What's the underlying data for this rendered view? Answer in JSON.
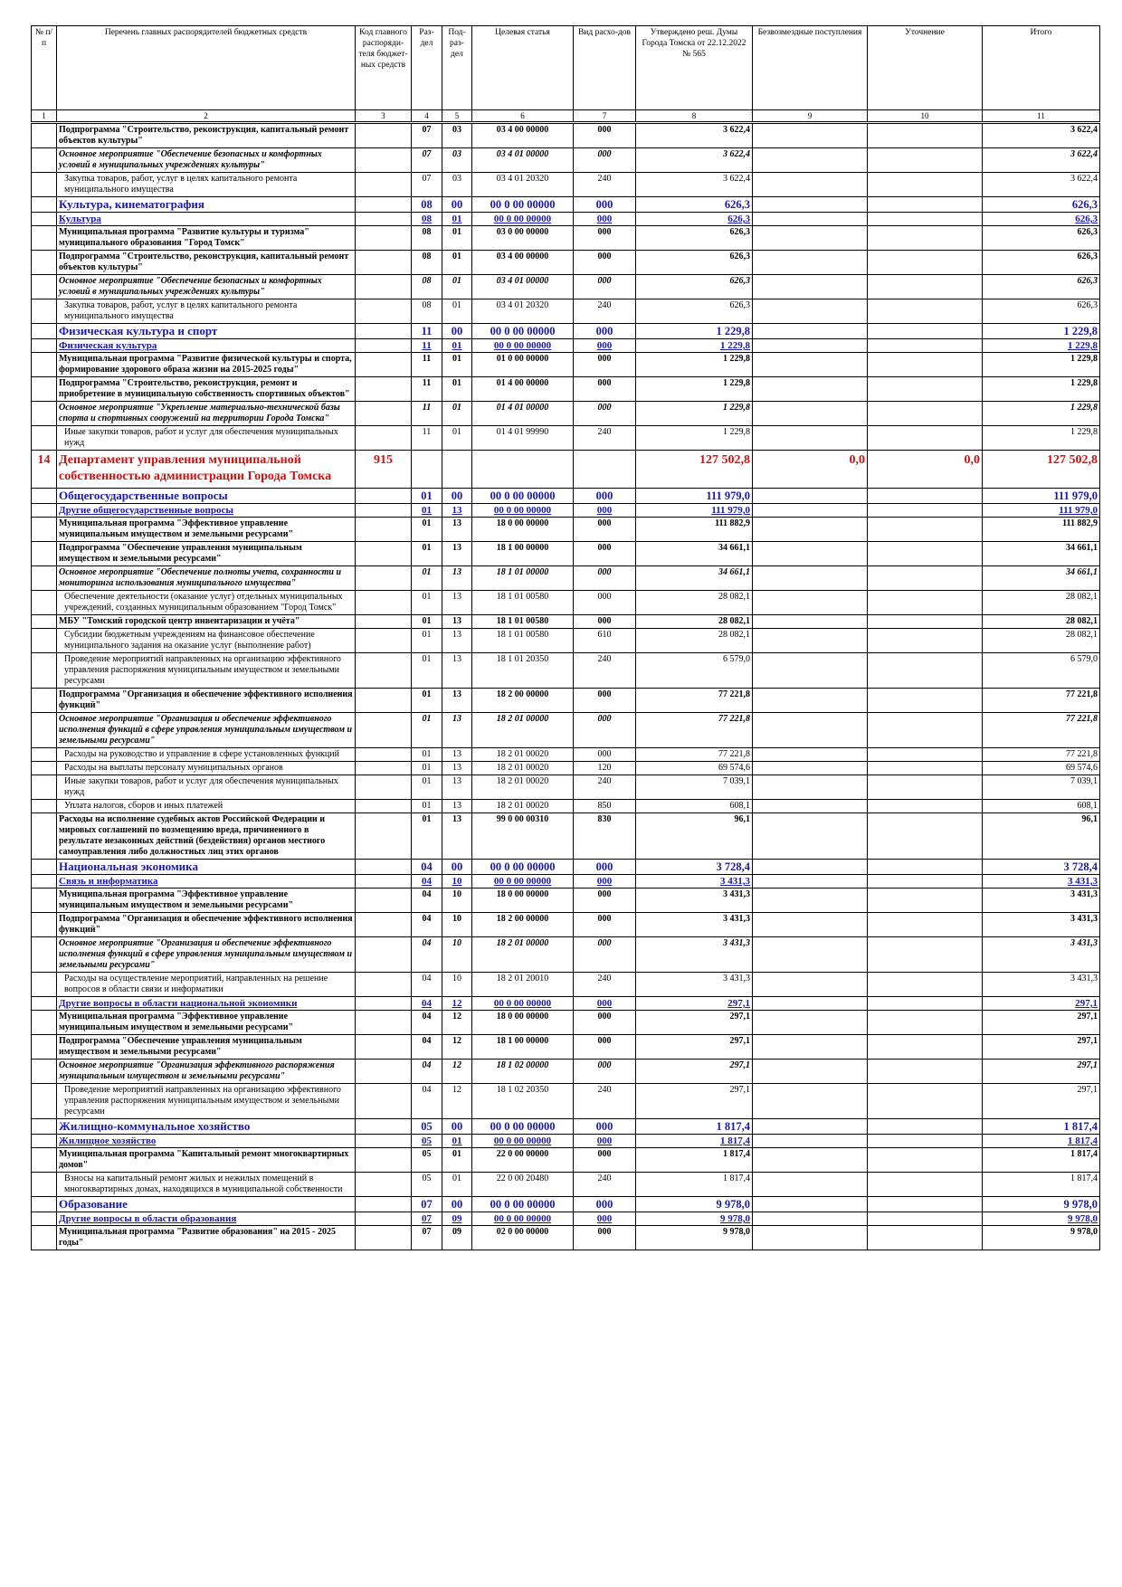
{
  "table": {
    "headers": [
      "№ п/п",
      "Перечень главных распорядителей бюджетных средств",
      "Код главного распоряди-теля бюджет-ных средств",
      "Раз-дел",
      "Под-раз-дел",
      "Целевая статья",
      "Вид расхо-дов",
      "Утверждено реш. Думы Города Томска от 22.12.2022 № 565",
      "Безвозмездные поступления",
      "Уточнение",
      "Итого"
    ],
    "column_numbers": [
      "1",
      "2",
      "3",
      "4",
      "5",
      "6",
      "7",
      "8",
      "9",
      "10",
      "11"
    ],
    "rows": [
      {
        "style": "bold",
        "cells": [
          null,
          "Подпрограмма \"Строительство, реконструкция, капитальный ремонт объектов культуры\"",
          null,
          "07",
          "03",
          "03 4 00 00000",
          "000",
          "3 622,4",
          null,
          null,
          "3 622,4"
        ]
      },
      {
        "style": "italic",
        "cells": [
          null,
          "Основное мероприятие \"Обеспечение безопасных и комфортных условий в муниципальных учреждениях культуры\"",
          null,
          "07",
          "03",
          "03 4 01 00000",
          "000",
          "3 622,4",
          null,
          null,
          "3 622,4"
        ]
      },
      {
        "style": "normal",
        "cells": [
          null,
          "Закупка товаров, работ, услуг в целях капитального ремонта муниципального имущества",
          null,
          "07",
          "03",
          "03 4 01 20320",
          "240",
          "3 622,4",
          null,
          null,
          "3 622,4"
        ]
      },
      {
        "style": "section",
        "cells": [
          null,
          "Культура, кинематография",
          null,
          "08",
          "00",
          "00 0 00 00000",
          "000",
          "626,3",
          null,
          null,
          "626,3"
        ]
      },
      {
        "style": "subsection",
        "cells": [
          null,
          "Культура",
          null,
          "08",
          "01",
          "00 0 00 00000",
          "000",
          "626,3",
          null,
          null,
          "626,3"
        ]
      },
      {
        "style": "bold",
        "cells": [
          null,
          "Муниципальная программа \"Развитие культуры и туризма\" муниципального образования \"Город Томск\"",
          null,
          "08",
          "01",
          "03 0 00 00000",
          "000",
          "626,3",
          null,
          null,
          "626,3"
        ]
      },
      {
        "style": "bold",
        "cells": [
          null,
          "Подпрограмма \"Строительство, реконструкция, капитальный ремонт объектов культуры\"",
          null,
          "08",
          "01",
          "03 4 00 00000",
          "000",
          "626,3",
          null,
          null,
          "626,3"
        ]
      },
      {
        "style": "italic",
        "cells": [
          null,
          "Основное мероприятие \"Обеспечение безопасных и комфортных условий в муниципальных учреждениях культуры\"",
          null,
          "08",
          "01",
          "03 4 01 00000",
          "000",
          "626,3",
          null,
          null,
          "626,3"
        ]
      },
      {
        "style": "normal",
        "cells": [
          null,
          "Закупка товаров, работ, услуг в целях капитального ремонта муниципального имущества",
          null,
          "08",
          "01",
          "03 4 01 20320",
          "240",
          "626,3",
          null,
          null,
          "626,3"
        ]
      },
      {
        "style": "section",
        "cells": [
          null,
          "Физическая культура и спорт",
          null,
          "11",
          "00",
          "00 0 00 00000",
          "000",
          "1 229,8",
          null,
          null,
          "1 229,8"
        ]
      },
      {
        "style": "subsection",
        "cells": [
          null,
          "Физическая культура",
          null,
          "11",
          "01",
          "00 0 00 00000",
          "000",
          "1 229,8",
          null,
          null,
          "1 229,8"
        ]
      },
      {
        "style": "bold",
        "cells": [
          null,
          "Муниципальная программа \"Развитие физической культуры и спорта, формирование здорового образа жизни на 2015-2025 годы\"",
          null,
          "11",
          "01",
          "01 0 00 00000",
          "000",
          "1 229,8",
          null,
          null,
          "1 229,8"
        ]
      },
      {
        "style": "bold",
        "cells": [
          null,
          "Подпрограмма \"Строительство, реконструкция, ремонт и приобретение в муниципальную собственность спортивных объектов\"",
          null,
          "11",
          "01",
          "01 4 00 00000",
          "000",
          "1 229,8",
          null,
          null,
          "1 229,8"
        ]
      },
      {
        "style": "italic",
        "cells": [
          null,
          "Основное мероприятие \"Укрепление материально-технической базы спорта и спортивных сооружений на территории Города Томска\"",
          null,
          "11",
          "01",
          "01 4 01 00000",
          "000",
          "1 229,8",
          null,
          null,
          "1 229,8"
        ]
      },
      {
        "style": "normal",
        "cells": [
          null,
          "Иные закупки товаров, работ и услуг для обеспечения муниципальных нужд",
          null,
          "11",
          "01",
          "01 4 01 99990",
          "240",
          "1 229,8",
          null,
          null,
          "1 229,8"
        ]
      },
      {
        "style": "title",
        "cells": [
          "14",
          "Департамент управления муниципальной собственностью администрации Города Томска",
          "915",
          null,
          null,
          null,
          null,
          "127 502,8",
          "0,0",
          "0,0",
          "127 502,8"
        ]
      },
      {
        "style": "section",
        "cells": [
          null,
          "Общегосударственные вопросы",
          null,
          "01",
          "00",
          "00 0 00 00000",
          "000",
          "111 979,0",
          null,
          null,
          "111 979,0"
        ]
      },
      {
        "style": "subsection",
        "cells": [
          null,
          "Другие общегосударственные вопросы",
          null,
          "01",
          "13",
          "00 0 00 00000",
          "000",
          "111 979,0",
          null,
          null,
          "111 979,0"
        ]
      },
      {
        "style": "bold",
        "cells": [
          null,
          "Муниципальная программа \"Эффективное управление муниципальным имуществом и земельными ресурсами\"",
          null,
          "01",
          "13",
          "18 0 00 00000",
          "000",
          "111 882,9",
          null,
          null,
          "111 882,9"
        ]
      },
      {
        "style": "bold",
        "cells": [
          null,
          "Подпрограмма \"Обеспечение управления муниципальным имуществом и земельными ресурсами\"",
          null,
          "01",
          "13",
          "18 1 00 00000",
          "000",
          "34 661,1",
          null,
          null,
          "34 661,1"
        ]
      },
      {
        "style": "italic",
        "cells": [
          null,
          "Основное мероприятие \"Обеспечение полноты учета, сохранности и мониторинга использования муниципального имущества\"",
          null,
          "01",
          "13",
          "18 1 01 00000",
          "000",
          "34 661,1",
          null,
          null,
          "34 661,1"
        ]
      },
      {
        "style": "normal",
        "cells": [
          null,
          "Обеспечение деятельности (оказание услуг) отдельных муниципальных учреждений, созданных муниципальным образованием \"Город Томск\"",
          null,
          "01",
          "13",
          "18 1 01 00580",
          "000",
          "28 082,1",
          null,
          null,
          "28 082,1"
        ]
      },
      {
        "style": "bold",
        "cells": [
          null,
          "МБУ \"Томский городской центр инвентаризации и учёта\"",
          null,
          "01",
          "13",
          "18 1 01 00580",
          "000",
          "28 082,1",
          null,
          null,
          "28 082,1"
        ]
      },
      {
        "style": "normal",
        "cells": [
          null,
          "Субсидии бюджетным учреждениям на финансовое обеспечение муниципального задания на оказание услуг (выполнение работ)",
          null,
          "01",
          "13",
          "18 1 01 00580",
          "610",
          "28 082,1",
          null,
          null,
          "28 082,1"
        ]
      },
      {
        "style": "normal",
        "cells": [
          null,
          "Проведение мероприятий направленных на организацию эффективного управления распоряжения муниципальным имуществом и земельными ресурсами",
          null,
          "01",
          "13",
          "18 1 01 20350",
          "240",
          "6 579,0",
          null,
          null,
          "6 579,0"
        ]
      },
      {
        "style": "bold",
        "cells": [
          null,
          "Подпрограмма \"Организация и обеспечение эффективного исполнения функций\"",
          null,
          "01",
          "13",
          "18 2 00 00000",
          "000",
          "77 221,8",
          null,
          null,
          "77 221,8"
        ]
      },
      {
        "style": "italic",
        "cells": [
          null,
          "Основное мероприятие \"Организация и обеспечение эффективного исполнения функций в сфере управления муниципальным имуществом и земельными ресурсами\"",
          null,
          "01",
          "13",
          "18 2 01 00000",
          "000",
          "77 221,8",
          null,
          null,
          "77 221,8"
        ]
      },
      {
        "style": "normal",
        "cells": [
          null,
          "Расходы на руководство и управление в сфере установленных функций",
          null,
          "01",
          "13",
          "18 2 01 00020",
          "000",
          "77 221,8",
          null,
          null,
          "77 221,8"
        ]
      },
      {
        "style": "normal",
        "cells": [
          null,
          "Расходы на выплаты персоналу муниципальных органов",
          null,
          "01",
          "13",
          "18 2 01 00020",
          "120",
          "69 574,6",
          null,
          null,
          "69 574,6"
        ]
      },
      {
        "style": "normal",
        "cells": [
          null,
          "Иные закупки товаров, работ и услуг для обеспечения муниципальных нужд",
          null,
          "01",
          "13",
          "18 2 01 00020",
          "240",
          "7 039,1",
          null,
          null,
          "7 039,1"
        ]
      },
      {
        "style": "normal",
        "cells": [
          null,
          "Уплата налогов, сборов и иных платежей",
          null,
          "01",
          "13",
          "18 2 01 00020",
          "850",
          "608,1",
          null,
          null,
          "608,1"
        ]
      },
      {
        "style": "bold",
        "cells": [
          null,
          "Расходы на исполнение судебных актов Российской Федерации и мировых соглашений по возмещению вреда, причиненного в результате незаконных действий (бездействия) органов местного самоуправления либо должностных лиц этих органов",
          null,
          "01",
          "13",
          "99 0 00 00310",
          "830",
          "96,1",
          null,
          null,
          "96,1"
        ]
      },
      {
        "style": "section",
        "cells": [
          null,
          "Национальная экономика",
          null,
          "04",
          "00",
          "00 0 00 00000",
          "000",
          "3 728,4",
          null,
          null,
          "3 728,4"
        ]
      },
      {
        "style": "subsection",
        "cells": [
          null,
          "Связь и информатика",
          null,
          "04",
          "10",
          "00 0 00 00000",
          "000",
          "3 431,3",
          null,
          null,
          "3 431,3"
        ]
      },
      {
        "style": "bold",
        "cells": [
          null,
          "Муниципальная программа \"Эффективное управление муниципальным имуществом и земельными ресурсами\"",
          null,
          "04",
          "10",
          "18 0 00 00000",
          "000",
          "3 431,3",
          null,
          null,
          "3 431,3"
        ]
      },
      {
        "style": "bold",
        "cells": [
          null,
          "Подпрограмма \"Организация и обеспечение эффективного исполнения функций\"",
          null,
          "04",
          "10",
          "18 2 00 00000",
          "000",
          "3 431,3",
          null,
          null,
          "3 431,3"
        ]
      },
      {
        "style": "italic",
        "cells": [
          null,
          "Основное мероприятие \"Организация и обеспечение эффективного исполнения функций в сфере управления муниципальным имуществом и земельными ресурсами\"",
          null,
          "04",
          "10",
          "18 2 01 00000",
          "000",
          "3 431,3",
          null,
          null,
          "3 431,3"
        ]
      },
      {
        "style": "normal",
        "cells": [
          null,
          "Расходы на осуществление мероприятий, направленных на решение вопросов в области связи и информатики",
          null,
          "04",
          "10",
          "18 2 01 20010",
          "240",
          "3 431,3",
          null,
          null,
          "3 431,3"
        ]
      },
      {
        "style": "subsection",
        "cells": [
          null,
          "Другие вопросы в области национальной экономики",
          null,
          "04",
          "12",
          "00 0 00 00000",
          "000",
          "297,1",
          null,
          null,
          "297,1"
        ]
      },
      {
        "style": "bold",
        "cells": [
          null,
          "Муниципальная программа \"Эффективное управление муниципальным имуществом и земельными ресурсами\"",
          null,
          "04",
          "12",
          "18 0 00 00000",
          "000",
          "297,1",
          null,
          null,
          "297,1"
        ]
      },
      {
        "style": "bold",
        "cells": [
          null,
          "Подпрограмма \"Обеспечение управления муниципальным имуществом и земельными ресурсами\"",
          null,
          "04",
          "12",
          "18 1 00 00000",
          "000",
          "297,1",
          null,
          null,
          "297,1"
        ]
      },
      {
        "style": "italic",
        "cells": [
          null,
          "Основное мероприятие \"Организация эффективного распоряжения муниципальным имуществом и земельными ресурсами\"",
          null,
          "04",
          "12",
          "18 1 02 00000",
          "000",
          "297,1",
          null,
          null,
          "297,1"
        ]
      },
      {
        "style": "normal",
        "cells": [
          null,
          "Проведение мероприятий направленных на организацию эффективного управления распоряжения муниципальным имуществом и земельными ресурсами",
          null,
          "04",
          "12",
          "18 1 02 20350",
          "240",
          "297,1",
          null,
          null,
          "297,1"
        ]
      },
      {
        "style": "section",
        "cells": [
          null,
          "Жилищно-коммунальное хозяйство",
          null,
          "05",
          "00",
          "00 0 00 00000",
          "000",
          "1 817,4",
          null,
          null,
          "1 817,4"
        ]
      },
      {
        "style": "subsection",
        "cells": [
          null,
          "Жилищное хозяйство",
          null,
          "05",
          "01",
          "00 0 00 00000",
          "000",
          "1 817,4",
          null,
          null,
          "1 817,4"
        ]
      },
      {
        "style": "bold",
        "cells": [
          null,
          "Муниципальная программа \"Капитальный ремонт многоквартирных домов\"",
          null,
          "05",
          "01",
          "22 0 00 00000",
          "000",
          "1 817,4",
          null,
          null,
          "1 817,4"
        ]
      },
      {
        "style": "normal",
        "cells": [
          null,
          "Взносы на капитальный ремонт жилых и нежилых помещений в многоквартирных домах, находящихся в муниципальной собственности",
          null,
          "05",
          "01",
          "22 0 00 20480",
          "240",
          "1 817,4",
          null,
          null,
          "1 817,4"
        ]
      },
      {
        "style": "section",
        "cells": [
          null,
          "Образование",
          null,
          "07",
          "00",
          "00 0 00 00000",
          "000",
          "9 978,0",
          null,
          null,
          "9 978,0"
        ]
      },
      {
        "style": "subsection",
        "cells": [
          null,
          "Другие вопросы в области образования",
          null,
          "07",
          "09",
          "00 0 00 00000",
          "000",
          "9 978,0",
          null,
          null,
          "9 978,0"
        ]
      },
      {
        "style": "bold",
        "cells": [
          null,
          "Муниципальная программа \"Развитие образования\" на 2015 - 2025 годы\"",
          null,
          "07",
          "09",
          "02 0 00 00000",
          "000",
          "9 978,0",
          null,
          null,
          "9 978,0"
        ]
      }
    ]
  }
}
